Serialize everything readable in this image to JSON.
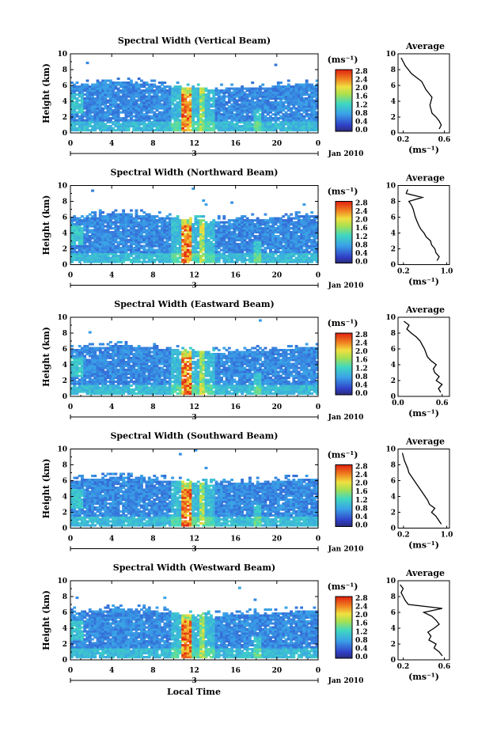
{
  "figure": {
    "xlabel": "Local Time",
    "date_label": "Jan 2010",
    "day_label": "3",
    "units_label": "(ms⁻¹)",
    "profile_title": "Average",
    "profile_xlabel": "(ms⁻¹)",
    "height_label": "Height (km)"
  },
  "chart_data": [
    {
      "type": "heatmap",
      "title": "Spectral Width (Vertical Beam)",
      "ylabel": "Height (km)",
      "xlabel": "Local Time",
      "x_ticks": [
        "0",
        "4",
        "8",
        "12",
        "16",
        "20",
        "0"
      ],
      "y_ticks": [
        "0",
        "2",
        "4",
        "6",
        "8",
        "10"
      ],
      "xlim": [
        0,
        24
      ],
      "ylim": [
        0,
        10
      ],
      "colorbar": {
        "label": "(ms⁻¹)",
        "ticks": [
          "0.0",
          "0.4",
          "0.8",
          "1.2",
          "1.6",
          "2.0",
          "2.4",
          "2.8"
        ],
        "range": [
          0,
          2.8
        ]
      },
      "profile": {
        "title": "Average",
        "xlabel": "(ms⁻¹)",
        "x_ticks": [
          "0.2",
          "0.6"
        ],
        "xlim": [
          0.15,
          0.65
        ],
        "ylim": [
          0,
          10
        ],
        "heights": [
          0.5,
          1,
          1.5,
          2,
          2.5,
          3,
          3.5,
          4,
          4.5,
          5,
          5.5,
          6,
          6.5,
          7,
          7.5,
          8,
          8.5,
          9,
          9.5
        ],
        "values": [
          0.55,
          0.57,
          0.55,
          0.52,
          0.48,
          0.47,
          0.46,
          0.47,
          0.48,
          0.45,
          0.42,
          0.4,
          0.38,
          0.33,
          0.28,
          0.25,
          0.22,
          0.2,
          0.18
        ]
      }
    },
    {
      "type": "heatmap",
      "title": "Spectral Width (Northward Beam)",
      "ylabel": "Height (km)",
      "xlabel": "Local Time",
      "x_ticks": [
        "0",
        "4",
        "8",
        "12",
        "16",
        "20",
        "0"
      ],
      "y_ticks": [
        "0",
        "2",
        "4",
        "6",
        "8",
        "10"
      ],
      "xlim": [
        0,
        24
      ],
      "ylim": [
        0,
        10
      ],
      "colorbar": {
        "label": "(ms⁻¹)",
        "ticks": [
          "0.0",
          "0.4",
          "0.8",
          "1.2",
          "1.6",
          "2.0",
          "2.4",
          "2.8"
        ],
        "range": [
          0,
          2.8
        ]
      },
      "profile": {
        "title": "Average",
        "xlabel": "(ms⁻¹)",
        "x_ticks": [
          "0.2",
          "1.0"
        ],
        "xlim": [
          0.1,
          1.05
        ],
        "ylim": [
          0,
          10
        ],
        "heights": [
          0.5,
          1,
          1.5,
          2,
          2.5,
          3,
          3.5,
          4,
          4.5,
          5,
          5.5,
          6,
          6.5,
          7,
          7.5,
          8,
          8.5,
          9,
          9.5
        ],
        "values": [
          0.82,
          0.86,
          0.8,
          0.78,
          0.72,
          0.7,
          0.62,
          0.58,
          0.52,
          0.48,
          0.45,
          0.42,
          0.4,
          0.38,
          0.35,
          0.3,
          0.55,
          0.25,
          0.28
        ]
      }
    },
    {
      "type": "heatmap",
      "title": "Spectral Width (Eastward Beam)",
      "ylabel": "Height (km)",
      "xlabel": "Local Time",
      "x_ticks": [
        "0",
        "4",
        "8",
        "12",
        "16",
        "20",
        "0"
      ],
      "y_ticks": [
        "0",
        "2",
        "4",
        "6",
        "8",
        "10"
      ],
      "xlim": [
        0,
        24
      ],
      "ylim": [
        0,
        10
      ],
      "colorbar": {
        "label": "(ms⁻¹)",
        "ticks": [
          "0.0",
          "0.4",
          "0.8",
          "1.2",
          "1.6",
          "2.0",
          "2.4",
          "2.8"
        ],
        "range": [
          0,
          2.8
        ]
      },
      "profile": {
        "title": "Average",
        "xlabel": "(ms⁻¹)",
        "x_ticks": [
          "0.0",
          "0.6"
        ],
        "xlim": [
          0.0,
          0.7
        ],
        "ylim": [
          0,
          10
        ],
        "heights": [
          0.5,
          1,
          1.5,
          2,
          2.5,
          3,
          3.5,
          4,
          4.5,
          5,
          5.5,
          6,
          6.5,
          7,
          7.5,
          8,
          8.5,
          9,
          9.5
        ],
        "values": [
          0.58,
          0.55,
          0.6,
          0.52,
          0.56,
          0.5,
          0.48,
          0.52,
          0.45,
          0.4,
          0.38,
          0.36,
          0.33,
          0.3,
          0.25,
          0.18,
          0.12,
          0.15,
          0.08
        ]
      }
    },
    {
      "type": "heatmap",
      "title": "Spectral Width (Southward Beam)",
      "ylabel": "Height (km)",
      "xlabel": "Local Time",
      "x_ticks": [
        "0",
        "4",
        "8",
        "12",
        "16",
        "20",
        "0"
      ],
      "y_ticks": [
        "0",
        "2",
        "4",
        "6",
        "8",
        "10"
      ],
      "xlim": [
        0,
        24
      ],
      "ylim": [
        0,
        10
      ],
      "colorbar": {
        "label": "(ms⁻¹)",
        "ticks": [
          "0.0",
          "0.4",
          "0.8",
          "1.2",
          "1.6",
          "2.0",
          "2.4",
          "2.8"
        ],
        "range": [
          0,
          2.8
        ]
      },
      "profile": {
        "title": "Average",
        "xlabel": "(ms⁻¹)",
        "x_ticks": [
          "0.2",
          "1.0"
        ],
        "xlim": [
          0.1,
          1.05
        ],
        "ylim": [
          0,
          10
        ],
        "heights": [
          0.5,
          1,
          1.5,
          2,
          2.5,
          3,
          3.5,
          4,
          4.5,
          5,
          5.5,
          6,
          6.5,
          7,
          7.5,
          8,
          8.5,
          9,
          9.5
        ],
        "values": [
          0.9,
          0.85,
          0.8,
          0.72,
          0.78,
          0.68,
          0.65,
          0.6,
          0.55,
          0.5,
          0.45,
          0.4,
          0.35,
          0.3,
          0.28,
          0.25,
          0.22,
          0.2,
          0.18
        ]
      }
    },
    {
      "type": "heatmap",
      "title": "Spectral Width (Westward Beam)",
      "ylabel": "Height (km)",
      "xlabel": "Local Time",
      "x_ticks": [
        "0",
        "4",
        "8",
        "12",
        "16",
        "20",
        "0"
      ],
      "y_ticks": [
        "0",
        "2",
        "4",
        "6",
        "8",
        "10"
      ],
      "xlim": [
        0,
        24
      ],
      "ylim": [
        0,
        10
      ],
      "colorbar": {
        "label": "(ms⁻¹)",
        "ticks": [
          "0.0",
          "0.4",
          "0.8",
          "1.2",
          "1.6",
          "2.0",
          "2.4",
          "2.8"
        ],
        "range": [
          0,
          2.8
        ]
      },
      "profile": {
        "title": "Average",
        "xlabel": "(ms⁻¹)",
        "x_ticks": [
          "0.2",
          "0.6"
        ],
        "xlim": [
          0.15,
          0.65
        ],
        "ylim": [
          0,
          10
        ],
        "heights": [
          0.5,
          1,
          1.5,
          2,
          2.5,
          3,
          3.5,
          4,
          4.5,
          5,
          5.5,
          6,
          6.5,
          7,
          7.5,
          8,
          8.5,
          9,
          9.5
        ],
        "values": [
          0.58,
          0.55,
          0.5,
          0.52,
          0.45,
          0.47,
          0.44,
          0.5,
          0.55,
          0.52,
          0.48,
          0.4,
          0.58,
          0.25,
          0.22,
          0.2,
          0.18,
          0.2,
          0.17
        ]
      }
    }
  ]
}
